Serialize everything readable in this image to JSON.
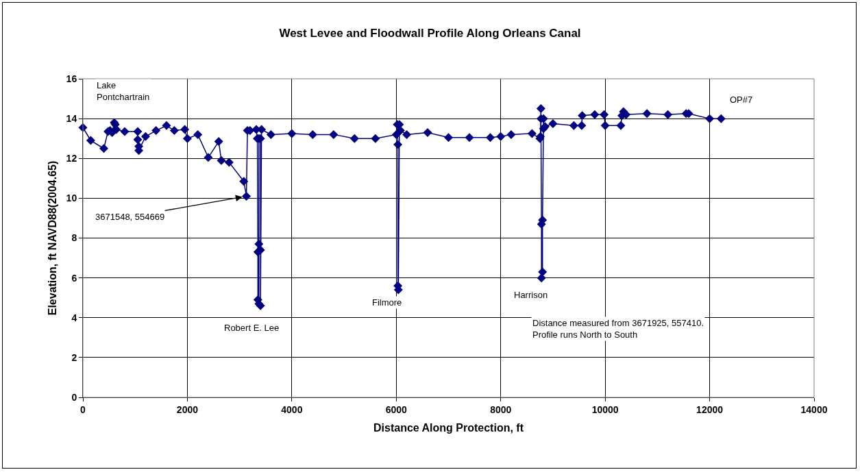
{
  "chart_data": {
    "type": "line",
    "title": "West Levee and Floodwall Profile Along Orleans Canal",
    "xlabel": "Distance Along Protection, ft",
    "ylabel": "Elevation, ft NAVD88(2004.65)",
    "x": [
      0,
      150,
      400,
      480,
      520,
      560,
      600,
      620,
      640,
      800,
      1050,
      1050,
      1070,
      1070,
      1200,
      1400,
      1600,
      1750,
      1950,
      2000,
      2200,
      2400,
      2600,
      2650,
      2800,
      3080,
      3130,
      3150,
      3200,
      3320,
      3340,
      3350,
      3350,
      3370,
      3370,
      3370,
      3400,
      3400,
      3400,
      3420,
      3600,
      4000,
      4400,
      4800,
      5200,
      5600,
      6000,
      6020,
      6030,
      6030,
      6040,
      6060,
      6080,
      6200,
      6600,
      7000,
      7400,
      7800,
      8000,
      8200,
      8600,
      8750,
      8760,
      8770,
      8770,
      8780,
      8780,
      8800,
      8800,
      8820,
      8820,
      8850,
      9000,
      9400,
      9550,
      9560,
      9800,
      9980,
      10000,
      10300,
      10320,
      10350,
      10400,
      10800,
      11200,
      11550,
      11600,
      12000,
      12220
    ],
    "series": [
      {
        "color": "#000080",
        "values": [
          13.55,
          12.9,
          12.5,
          13.35,
          13.4,
          13.3,
          13.8,
          13.7,
          13.45,
          13.35,
          13.35,
          12.95,
          12.6,
          12.4,
          13.1,
          13.4,
          13.65,
          13.4,
          13.45,
          13.0,
          13.2,
          12.05,
          12.85,
          11.9,
          11.8,
          10.85,
          10.1,
          13.4,
          13.4,
          13.45,
          13.0,
          7.3,
          4.9,
          4.7,
          7.7,
          13.0,
          13.0,
          7.4,
          4.6,
          13.45,
          13.2,
          13.25,
          13.2,
          13.2,
          13.0,
          13.0,
          13.2,
          13.7,
          12.7,
          5.6,
          5.4,
          13.7,
          13.4,
          13.2,
          13.3,
          13.05,
          13.05,
          13.05,
          13.1,
          13.2,
          13.25,
          13.0,
          13.1,
          14.5,
          14.0,
          8.7,
          6.0,
          6.3,
          8.9,
          14.0,
          13.5,
          13.6,
          13.75,
          13.65,
          13.65,
          14.15,
          14.2,
          14.2,
          13.65,
          13.65,
          14.15,
          14.35,
          14.2,
          14.25,
          14.2,
          14.25,
          14.25,
          14.0,
          14.0
        ]
      }
    ],
    "xlim": [
      0,
      14000
    ],
    "xticks": [
      0,
      2000,
      4000,
      6000,
      8000,
      10000,
      12000,
      14000
    ],
    "ylim": [
      0,
      16
    ],
    "yticks": [
      0,
      2,
      4,
      6,
      8,
      10,
      12,
      14,
      16
    ],
    "grid": true,
    "marker": "diamond",
    "line_style": "solid",
    "annotations": [
      {
        "text": "3671548, 554669",
        "x": 3130,
        "y": 10.1
      },
      "Lake\nPontchartrain",
      "Robert E. Lee",
      "Filmore",
      "Harrison",
      "Distance measured from 3671925, 557410.\nProfile runs North to South",
      "OP#7"
    ]
  }
}
